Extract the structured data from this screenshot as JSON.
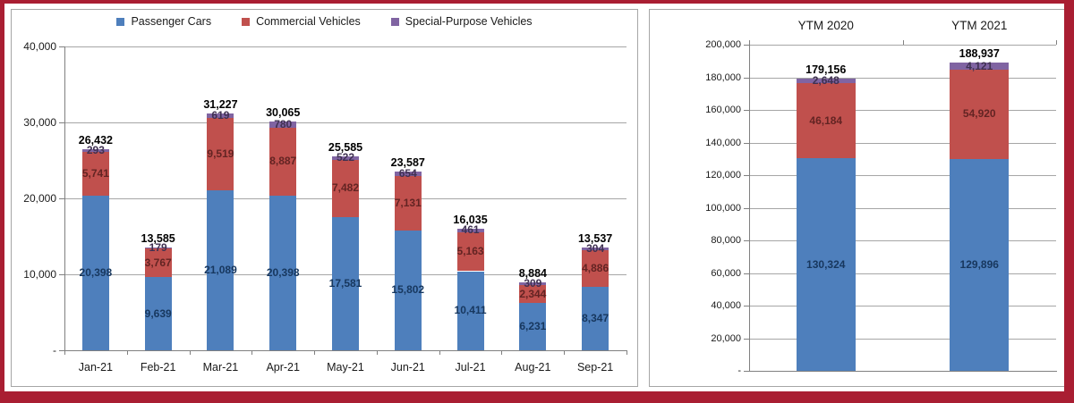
{
  "window": {
    "frame_color": "#A91E32",
    "panel_border": "#A6A6A6",
    "background": "#ffffff"
  },
  "chart_data": [
    {
      "type": "bar",
      "stacked": true,
      "legend_position": "top",
      "grid": true,
      "ylim": [
        0,
        40000
      ],
      "y_ticks": [
        "40,000",
        "30,000",
        "20,000",
        "10,000",
        "-"
      ],
      "categories": [
        "Jan-21",
        "Feb-21",
        "Mar-21",
        "Apr-21",
        "May-21",
        "Jun-21",
        "Jul-21",
        "Aug-21",
        "Sep-21"
      ],
      "category_labels_position": "bottom",
      "series": [
        {
          "name": "Passenger Cars",
          "color": "#4E7FBC",
          "label_color": "#17375E",
          "values": [
            20398,
            9639,
            21089,
            20398,
            17581,
            15802,
            10411,
            6231,
            8347
          ]
        },
        {
          "name": "Commercial Vehicles",
          "color": "#C0504D",
          "label_color": "#632423",
          "values": [
            5741,
            3767,
            9519,
            8887,
            7482,
            7131,
            5163,
            2344,
            4886
          ]
        },
        {
          "name": "Special-Purpose Vehicles",
          "color": "#8064A2",
          "label_color": "#3F3151",
          "values": [
            293,
            179,
            619,
            780,
            522,
            654,
            461,
            309,
            304
          ]
        }
      ],
      "totals": [
        26432,
        13585,
        31227,
        30065,
        25585,
        23587,
        16035,
        8884,
        13537
      ]
    },
    {
      "type": "bar",
      "stacked": true,
      "legend_position": "none",
      "grid": true,
      "ylim": [
        0,
        200000
      ],
      "y_ticks": [
        "200,000",
        "180,000",
        "160,000",
        "140,000",
        "120,000",
        "100,000",
        "80,000",
        "60,000",
        "40,000",
        "20,000",
        "-"
      ],
      "categories": [
        "YTM 2020",
        "YTM 2021"
      ],
      "category_labels_position": "top",
      "series": [
        {
          "name": "Passenger Cars",
          "color": "#4E7FBC",
          "label_color": "#17375E",
          "values": [
            130324,
            129896
          ]
        },
        {
          "name": "Commercial Vehicles",
          "color": "#C0504D",
          "label_color": "#632423",
          "values": [
            46184,
            54920
          ]
        },
        {
          "name": "Special-Purpose Vehicles",
          "color": "#8064A2",
          "label_color": "#3F3151",
          "values": [
            2648,
            4121
          ]
        }
      ],
      "totals": [
        179156,
        188937
      ]
    }
  ]
}
